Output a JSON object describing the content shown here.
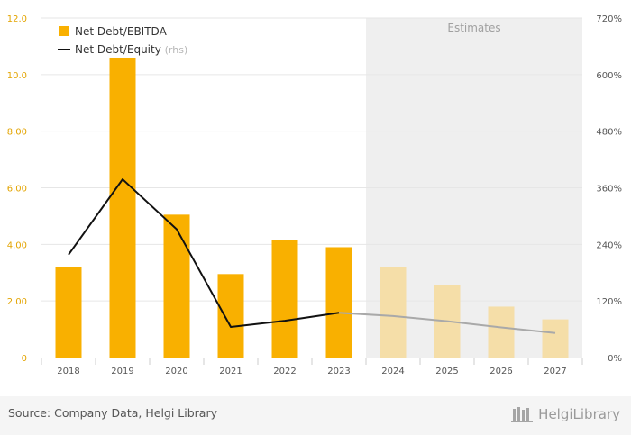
{
  "chart_data": {
    "type": "bar",
    "categories": [
      "2018",
      "2019",
      "2020",
      "2021",
      "2022",
      "2023",
      "2024",
      "2025",
      "2026",
      "2027"
    ],
    "estimate_start_index": 6,
    "estimates_label": "Estimates",
    "series": [
      {
        "name": "Net Debt/EBITDA",
        "type": "bar",
        "axis": "left",
        "values": [
          3.2,
          10.6,
          5.05,
          2.95,
          4.15,
          3.9,
          3.2,
          2.55,
          1.8,
          1.35
        ]
      },
      {
        "name": "Net Debt/Equity",
        "name_suffix": "(rhs)",
        "type": "line",
        "axis": "right",
        "unit": "%",
        "values": [
          218,
          378,
          272,
          65,
          78,
          95,
          88,
          77,
          64,
          52
        ]
      }
    ],
    "y_left": {
      "min": 0,
      "max": 12,
      "ticks": [
        "0",
        "2.00",
        "4.00",
        "6.00",
        "8.00",
        "10.0",
        "12.0"
      ]
    },
    "y_right": {
      "min": 0,
      "max": 720,
      "ticks": [
        "0%",
        "120%",
        "240%",
        "360%",
        "480%",
        "600%",
        "720%"
      ]
    },
    "grid": true,
    "legend_position": "top-left",
    "colors": {
      "bar": "#f9b000",
      "bar_estimate": "#f5dea8",
      "line": "#111111",
      "line_estimate": "#a9a9a9",
      "estimate_band": "#efefef",
      "left_axis_text": "#e3a400"
    }
  },
  "footer": {
    "source": "Source: Company Data, Helgi Library",
    "brand": "HelgiLibrary"
  }
}
